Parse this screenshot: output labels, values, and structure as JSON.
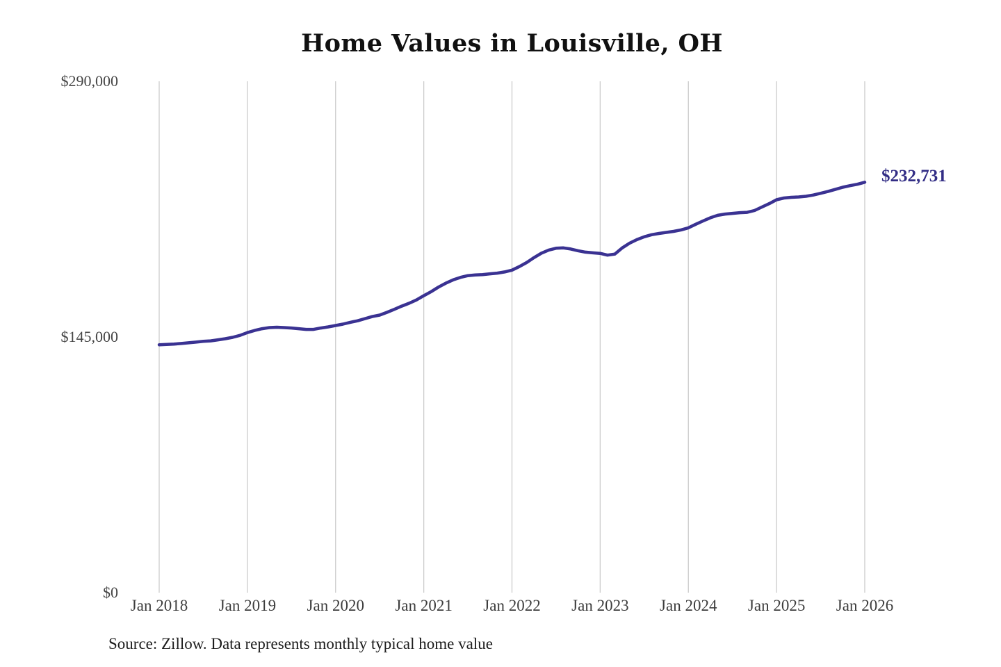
{
  "source_note": "Source: Zillow. Data represents monthly typical home value",
  "colors": {
    "line": "#3a3292",
    "end_label": "#322d85",
    "gridline": "#cbcbcb",
    "y_axis_text": "#454545",
    "x_axis_text": "#3d3d3d",
    "title_text": "#111111",
    "source_text": "#1d1d1d",
    "background": "#ffffff"
  },
  "chart_data": {
    "type": "line",
    "title": "Home Values in Louisville, OH",
    "xlabel": "",
    "ylabel": "",
    "ylim": [
      0,
      290000
    ],
    "grid": "vertical-only",
    "legend": "none",
    "line_width": 4.5,
    "annotation": {
      "text": "$232,731",
      "position": "line-end"
    },
    "y_ticks": [
      {
        "value": 0,
        "label": "$0"
      },
      {
        "value": 145000,
        "label": "$145,000"
      },
      {
        "value": 290000,
        "label": "$290,000"
      }
    ],
    "x_ticks": [
      {
        "index": 0,
        "label": "Jan 2018"
      },
      {
        "index": 12,
        "label": "Jan 2019"
      },
      {
        "index": 24,
        "label": "Jan 2020"
      },
      {
        "index": 36,
        "label": "Jan 2021"
      },
      {
        "index": 48,
        "label": "Jan 2022"
      },
      {
        "index": 60,
        "label": "Jan 2023"
      },
      {
        "index": 72,
        "label": "Jan 2024"
      },
      {
        "index": 84,
        "label": "Jan 2025"
      },
      {
        "index": 96,
        "label": "Jan 2026"
      }
    ],
    "x": [
      "2018-01",
      "2018-02",
      "2018-03",
      "2018-04",
      "2018-05",
      "2018-06",
      "2018-07",
      "2018-08",
      "2018-09",
      "2018-10",
      "2018-11",
      "2018-12",
      "2019-01",
      "2019-02",
      "2019-03",
      "2019-04",
      "2019-05",
      "2019-06",
      "2019-07",
      "2019-08",
      "2019-09",
      "2019-10",
      "2019-11",
      "2019-12",
      "2020-01",
      "2020-02",
      "2020-03",
      "2020-04",
      "2020-05",
      "2020-06",
      "2020-07",
      "2020-08",
      "2020-09",
      "2020-10",
      "2020-11",
      "2020-12",
      "2021-01",
      "2021-02",
      "2021-03",
      "2021-04",
      "2021-05",
      "2021-06",
      "2021-07",
      "2021-08",
      "2021-09",
      "2021-10",
      "2021-11",
      "2021-12",
      "2022-01",
      "2022-02",
      "2022-03",
      "2022-04",
      "2022-05",
      "2022-06",
      "2022-07",
      "2022-08",
      "2022-09",
      "2022-10",
      "2022-11",
      "2022-12",
      "2023-01",
      "2023-02",
      "2023-03",
      "2023-04",
      "2023-05",
      "2023-06",
      "2023-07",
      "2023-08",
      "2023-09",
      "2023-10",
      "2023-11",
      "2023-12",
      "2024-01",
      "2024-02",
      "2024-03",
      "2024-04",
      "2024-05",
      "2024-06",
      "2024-07",
      "2024-08",
      "2024-09",
      "2024-10",
      "2024-11",
      "2024-12",
      "2025-01",
      "2025-02",
      "2025-03",
      "2025-04",
      "2025-05",
      "2025-06",
      "2025-07",
      "2025-08",
      "2025-09",
      "2025-10",
      "2025-11",
      "2025-12",
      "2026-01"
    ],
    "values": [
      140600,
      140800,
      141000,
      141300,
      141700,
      142100,
      142500,
      142800,
      143400,
      144000,
      144800,
      145900,
      147500,
      148700,
      149700,
      150300,
      150500,
      150300,
      150100,
      149700,
      149300,
      149300,
      150100,
      150700,
      151500,
      152300,
      153300,
      154200,
      155400,
      156600,
      157400,
      159000,
      160700,
      162500,
      164100,
      166000,
      168400,
      170700,
      173300,
      175500,
      177400,
      178800,
      179800,
      180200,
      180400,
      180800,
      181200,
      181900,
      182900,
      184900,
      187200,
      190000,
      192500,
      194300,
      195300,
      195500,
      194900,
      193900,
      193100,
      192700,
      192400,
      191400,
      192000,
      195500,
      198200,
      200200,
      201800,
      203000,
      203700,
      204300,
      204900,
      205700,
      206900,
      208900,
      210800,
      212600,
      214000,
      214700,
      215100,
      215500,
      215700,
      216700,
      218700,
      220600,
      222800,
      223800,
      224200,
      224400,
      224800,
      225500,
      226500,
      227500,
      228700,
      229900,
      230800,
      231600,
      232731
    ]
  }
}
